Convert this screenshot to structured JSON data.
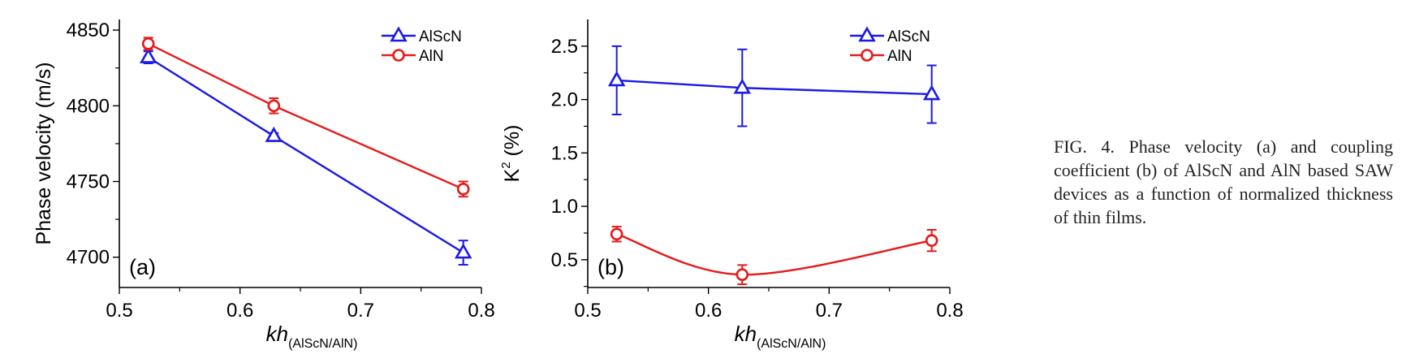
{
  "caption": "FIG. 4. Phase velocity (a) and coupling coefficient (b) of AlScN and AlN based SAW devices as a function of normalized thickness of thin films.",
  "colors": {
    "AlScN": "#1a1ae6",
    "AlN": "#e61a1a"
  },
  "chart_data": [
    {
      "type": "line",
      "panel_label": "(a)",
      "xlabel_main": "kh",
      "xlabel_sub": "(AlScN/AlN)",
      "ylabel": "Phase velocity (m/s)",
      "xlim": [
        0.5,
        0.8
      ],
      "ylim": [
        4680,
        4857
      ],
      "xticks": [
        0.5,
        0.6,
        0.7,
        0.8
      ],
      "xtick_labels": [
        "0.5",
        "0.6",
        "0.7",
        "0.8"
      ],
      "yticks": [
        4700,
        4750,
        4800,
        4850
      ],
      "ytick_labels": [
        "4700",
        "4750",
        "4800",
        "4850"
      ],
      "legend_position": "top-right",
      "series": [
        {
          "name": "AlScN",
          "marker": "triangle",
          "smooth": false,
          "x": [
            0.524,
            0.628,
            0.785
          ],
          "y": [
            4832,
            4780,
            4703
          ],
          "err": [
            4,
            2,
            8
          ]
        },
        {
          "name": "AlN",
          "marker": "circle",
          "smooth": false,
          "x": [
            0.524,
            0.628,
            0.785
          ],
          "y": [
            4841,
            4800,
            4745
          ],
          "err": [
            4,
            5,
            5
          ]
        }
      ]
    },
    {
      "type": "line",
      "panel_label": "(b)",
      "xlabel_main": "kh",
      "xlabel_sub": "(AlScN/AlN)",
      "ylabel_main": "K",
      "ylabel_sup": "2",
      "ylabel_rest": " (%)",
      "xlim": [
        0.5,
        0.8
      ],
      "ylim": [
        0.24,
        2.75
      ],
      "xticks": [
        0.5,
        0.6,
        0.7,
        0.8
      ],
      "xtick_labels": [
        "0.5",
        "0.6",
        "0.7",
        "0.8"
      ],
      "yticks": [
        0.5,
        1.0,
        1.5,
        2.0,
        2.5
      ],
      "ytick_labels": [
        "0.5",
        "1.0",
        "1.5",
        "2.0",
        "2.5"
      ],
      "legend_position": "top-right",
      "series": [
        {
          "name": "AlScN",
          "marker": "triangle",
          "smooth": false,
          "x": [
            0.524,
            0.628,
            0.785
          ],
          "y": [
            2.18,
            2.11,
            2.05
          ],
          "err": [
            0.32,
            0.36,
            0.27
          ]
        },
        {
          "name": "AlN",
          "marker": "circle",
          "smooth": true,
          "x": [
            0.524,
            0.628,
            0.785
          ],
          "y": [
            0.74,
            0.36,
            0.68
          ],
          "err": [
            0.07,
            0.09,
            0.1
          ]
        }
      ]
    }
  ]
}
